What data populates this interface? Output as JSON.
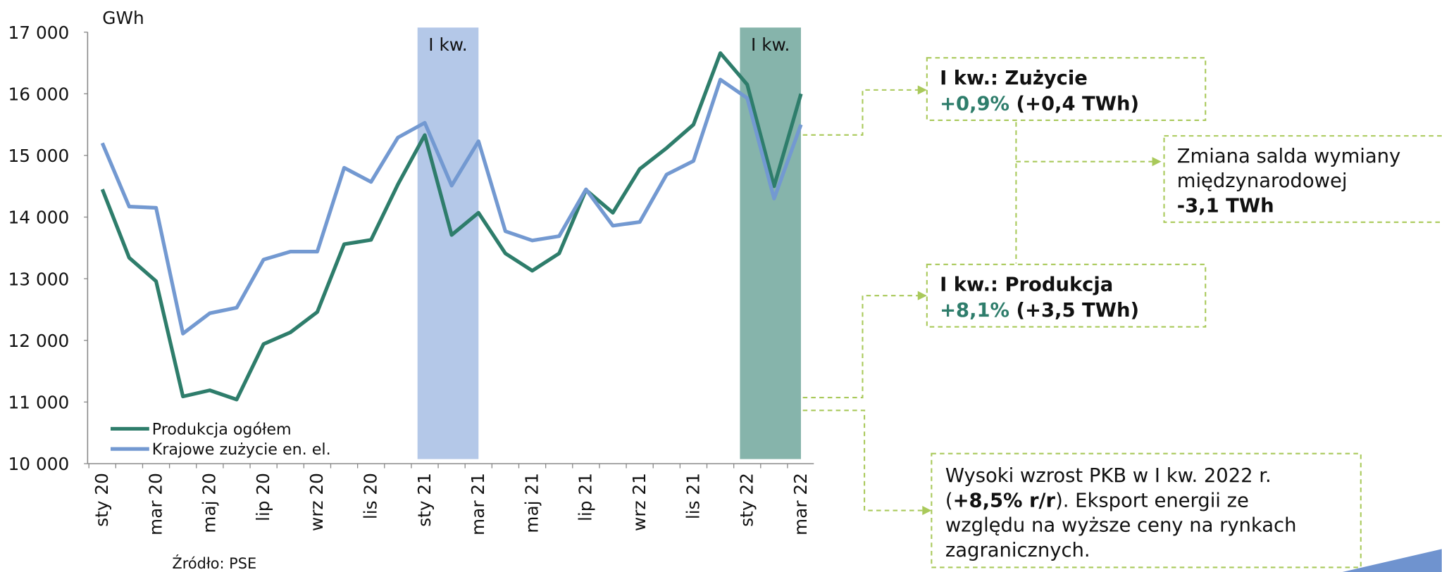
{
  "chart_data": {
    "type": "line",
    "unit_label": "GWh",
    "source": "Źródło: PSE",
    "categories": [
      "sty 20",
      null,
      "mar 20",
      null,
      "maj 20",
      null,
      "lip 20",
      null,
      "wrz 20",
      null,
      "lis 20",
      null,
      "sty 21",
      null,
      "mar 21",
      null,
      "maj 21",
      null,
      "lip 21",
      null,
      "wrz 21",
      null,
      "lis 21",
      null,
      "sty 22",
      null,
      "mar 22"
    ],
    "series": [
      {
        "name": "Produkcja ogółem",
        "color": "#2e7d6b",
        "values": [
          14450,
          13340,
          12960,
          11090,
          11190,
          11040,
          11940,
          12130,
          12460,
          13560,
          13630,
          14530,
          15330,
          13710,
          14070,
          13410,
          13130,
          13410,
          14440,
          14070,
          14780,
          15120,
          15500,
          16660,
          16150,
          14500,
          16000
        ]
      },
      {
        "name": "Krajowe zużycie en. el.",
        "color": "#7399d1",
        "values": [
          15200,
          14170,
          14150,
          12110,
          12440,
          12530,
          13310,
          13440,
          13440,
          14800,
          14570,
          15290,
          15530,
          14510,
          15230,
          13770,
          13620,
          13690,
          14450,
          13860,
          13920,
          14690,
          14910,
          16230,
          15930,
          14300,
          15500
        ]
      }
    ],
    "ylim": [
      10000,
      17000
    ],
    "yticks": [
      {
        "value": 10000,
        "label": "10 000"
      },
      {
        "value": 11000,
        "label": "11 000"
      },
      {
        "value": 12000,
        "label": "12 000"
      },
      {
        "value": 13000,
        "label": "13 000"
      },
      {
        "value": 14000,
        "label": "14 000"
      },
      {
        "value": 15000,
        "label": "15 000"
      },
      {
        "value": 16000,
        "label": "16 000"
      },
      {
        "value": 17000,
        "label": "17 000"
      }
    ],
    "highlights": [
      {
        "label": "I kw.",
        "color": "#b4c8e8",
        "start": 12,
        "end": 14
      },
      {
        "label": "I kw.",
        "color": "#86b4ab",
        "start": 24,
        "end": 26
      }
    ],
    "annotations": [
      {
        "lines": [
          [
            {
              "text": "I kw.: Zużycie",
              "bold": true
            }
          ],
          [
            {
              "text": "+0,9%",
              "bold": true,
              "color": "#2e7d6b"
            },
            {
              "text": " (+0,4 TWh)",
              "bold": true
            }
          ]
        ]
      },
      {
        "lines": [
          [
            {
              "text": "Zmiana salda wymiany"
            }
          ],
          [
            {
              "text": "międzynarodowej"
            }
          ],
          [
            {
              "text": "-3,1 TWh",
              "bold": true
            }
          ]
        ]
      },
      {
        "lines": [
          [
            {
              "text": "I kw.: Produkcja",
              "bold": true
            }
          ],
          [
            {
              "text": "+8,1%",
              "bold": true,
              "color": "#2e7d6b"
            },
            {
              "text": " (+3,5 TWh)",
              "bold": true
            }
          ]
        ]
      },
      {
        "lines": [
          [
            {
              "text": "Wysoki wzrost PKB w I kw. 2022 r."
            }
          ],
          [
            {
              "text": "("
            },
            {
              "text": "+8,5% r/r",
              "bold": true
            },
            {
              "text": "). Eksport energii ze"
            }
          ],
          [
            {
              "text": "względu na wyższe ceny na rynkach"
            }
          ],
          [
            {
              "text": "zagranicznych."
            }
          ]
        ]
      }
    ]
  }
}
